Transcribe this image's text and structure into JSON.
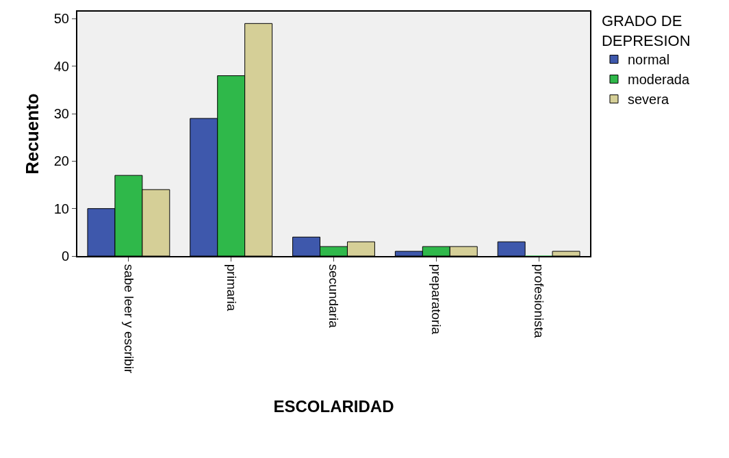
{
  "chart_data": {
    "type": "bar",
    "xlabel": "ESCOLARIDAD",
    "ylabel": "Recuento",
    "legend_title": "GRADO DE\nDEPRESION",
    "categories": [
      "sabe leer y escribir",
      "primaria",
      "secundaria",
      "preparatoria",
      "profesionista"
    ],
    "series": [
      {
        "name": "normal",
        "color": "#3e58ac",
        "values": [
          10,
          29,
          4,
          1,
          3
        ]
      },
      {
        "name": "moderada",
        "color": "#2fb84a",
        "values": [
          17,
          38,
          2,
          2,
          0
        ]
      },
      {
        "name": "severa",
        "color": "#d5cf97",
        "values": [
          14,
          49,
          3,
          2,
          1
        ]
      }
    ],
    "ylim": [
      0,
      51.5
    ],
    "yticks": [
      0,
      10,
      20,
      30,
      40,
      50
    ],
    "grid": false,
    "legend": "top right"
  }
}
